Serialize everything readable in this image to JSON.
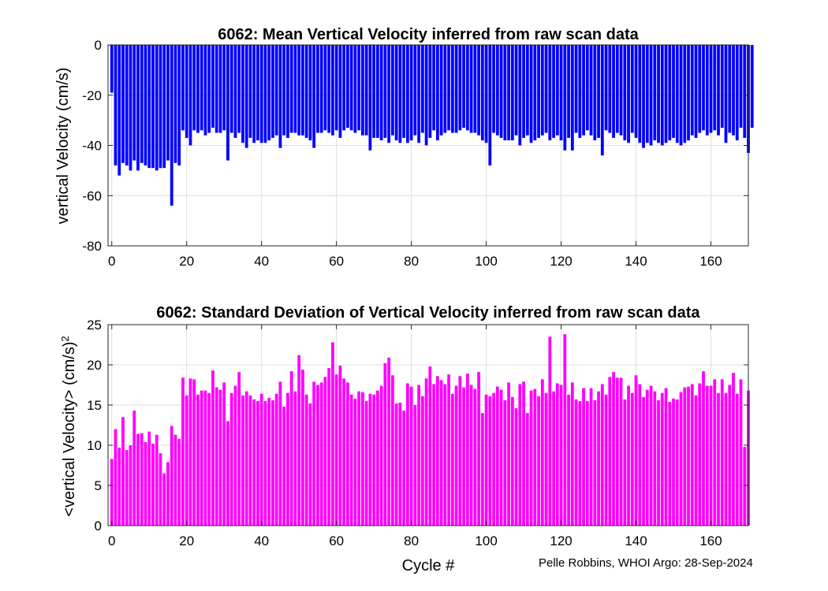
{
  "chart_data": [
    {
      "type": "bar",
      "title": "6062: Mean Vertical Velocity inferred from raw scan data",
      "xlabel": "",
      "ylabel": "vertical Velocity (cm/s)",
      "xlim": [
        -1,
        170
      ],
      "ylim": [
        -80,
        0
      ],
      "xticks": [
        0,
        20,
        40,
        60,
        80,
        100,
        120,
        140,
        160
      ],
      "yticks": [
        0,
        -20,
        -40,
        -60,
        -80
      ],
      "grid": true,
      "bar_color": "#0000ff",
      "x_start": 0,
      "values": [
        -19,
        -48,
        -52,
        -47,
        -48,
        -50,
        -46,
        -50,
        -47,
        -48,
        -49,
        -49,
        -50,
        -49,
        -49,
        -46,
        -64,
        -47,
        -48,
        -34,
        -37,
        -40,
        -34,
        -35,
        -34,
        -36,
        -35,
        -33,
        -35,
        -35,
        -34,
        -46,
        -35,
        -37,
        -35,
        -39,
        -41,
        -37,
        -39,
        -38,
        -39,
        -39,
        -38,
        -37,
        -36,
        -41,
        -36,
        -37,
        -35,
        -35,
        -36,
        -36,
        -37,
        -38,
        -41,
        -35,
        -35,
        -34,
        -35,
        -36,
        -34,
        -37,
        -34,
        -33,
        -34,
        -35,
        -34,
        -36,
        -36,
        -42,
        -37,
        -37,
        -38,
        -37,
        -39,
        -36,
        -38,
        -39,
        -37,
        -39,
        -38,
        -36,
        -39,
        -35,
        -40,
        -37,
        -34,
        -38,
        -36,
        -35,
        -34,
        -35,
        -35,
        -34,
        -33,
        -34,
        -35,
        -35,
        -36,
        -38,
        -39,
        -48,
        -35,
        -36,
        -37,
        -38,
        -38,
        -38,
        -36,
        -40,
        -37,
        -36,
        -39,
        -38,
        -37,
        -36,
        -35,
        -38,
        -37,
        -36,
        -38,
        -42,
        -37,
        -42,
        -35,
        -37,
        -36,
        -34,
        -36,
        -38,
        -37,
        -44,
        -34,
        -35,
        -37,
        -35,
        -36,
        -38,
        -39,
        -35,
        -37,
        -39,
        -41,
        -39,
        -40,
        -38,
        -39,
        -40,
        -39,
        -38,
        -37,
        -39,
        -40,
        -39,
        -38,
        -36,
        -37,
        -35,
        -34,
        -36,
        -35,
        -34,
        -36,
        -33,
        -39,
        -35,
        -36,
        -38,
        -33,
        -37,
        -43,
        -33
      ]
    },
    {
      "type": "bar",
      "title": "6062: Standard Deviation of Vertical Velocity inferred from raw scan data",
      "xlabel": "Cycle #",
      "ylabel": "<vertical Velocity> (cm/s)",
      "ylabel_superscript": "2",
      "xlim": [
        -1,
        170
      ],
      "ylim": [
        0,
        25
      ],
      "xticks": [
        0,
        20,
        40,
        60,
        80,
        100,
        120,
        140,
        160
      ],
      "yticks": [
        0,
        5,
        10,
        15,
        20,
        25
      ],
      "grid": true,
      "bar_color": "#ff00ff",
      "x_start": 0,
      "values": [
        8.3,
        12.0,
        9.7,
        13.5,
        9.4,
        10.0,
        14.3,
        11.4,
        11.5,
        10.4,
        11.7,
        10.2,
        11.3,
        9.0,
        6.5,
        7.9,
        12.4,
        11.3,
        10.8,
        18.4,
        16.2,
        18.3,
        18.2,
        16.3,
        16.8,
        16.8,
        16.5,
        19.3,
        17.2,
        16.9,
        17.8,
        13.0,
        16.5,
        17.4,
        19.1,
        16.2,
        16.7,
        16.2,
        15.7,
        15.5,
        16.4,
        15.5,
        15.9,
        15.6,
        16.4,
        17.9,
        14.8,
        16.5,
        19.2,
        16.7,
        21.2,
        19.4,
        16.3,
        15.2,
        17.9,
        17.5,
        17.8,
        18.5,
        19.6,
        22.8,
        18.8,
        19.9,
        18.3,
        17.8,
        16.3,
        15.8,
        16.7,
        16.6,
        15.5,
        16.4,
        16.3,
        16.8,
        17.4,
        20.2,
        20.9,
        18.7,
        15.2,
        15.3,
        14.3,
        17.7,
        17.3,
        15.0,
        17.5,
        16.1,
        18.3,
        19.8,
        17.6,
        18.6,
        18.1,
        17.6,
        18.8,
        16.4,
        17.4,
        18.6,
        17.2,
        18.9,
        17.5,
        17.0,
        19.1,
        14.0,
        16.3,
        16.1,
        16.5,
        17.3,
        16.9,
        15.6,
        17.8,
        16.0,
        14.6,
        17.6,
        17.9,
        14.0,
        16.8,
        17.0,
        16.1,
        18.2,
        16.5,
        23.5,
        16.7,
        17.7,
        17.5,
        23.8,
        16.3,
        17.8,
        15.7,
        15.5,
        17.1,
        15.5,
        17.1,
        15.6,
        16.7,
        17.6,
        16.3,
        18.5,
        19.1,
        18.4,
        18.4,
        15.7,
        17.4,
        16.5,
        18.7,
        17.6,
        16.0,
        16.9,
        17.4,
        16.7,
        15.6,
        16.5,
        17.1,
        15.4,
        15.8,
        15.7,
        16.6,
        17.2,
        17.3,
        17.6,
        16.2,
        17.7,
        19.2,
        17.4,
        17.4,
        18.2,
        16.5,
        18.2,
        16.5,
        17.5,
        19.0,
        16.4,
        18.2,
        9.8,
        16.8
      ]
    }
  ],
  "footer": {
    "credit": "Pelle Robbins, WHOI Argo: 28-Sep-2024"
  }
}
